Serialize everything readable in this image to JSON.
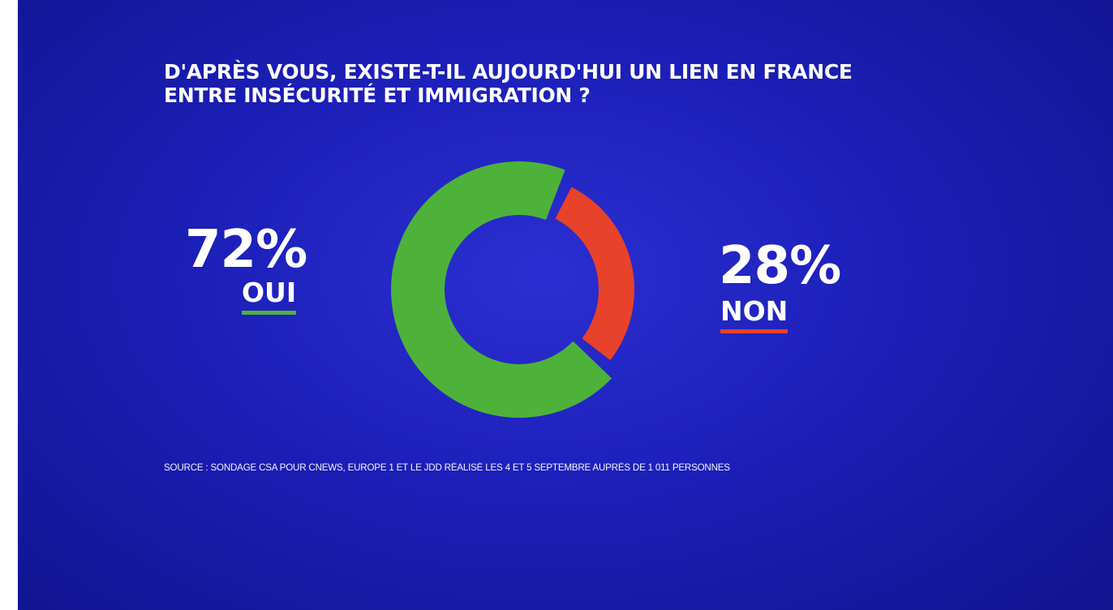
{
  "title_lines": [
    "D'APRÈS VOUS, EXISTE-T-IL AUJOURD'HUI UN LIEN EN FRANCE",
    "ENTRE INSÉCURITÉ ET IMMIGRATION ?"
  ],
  "source": "SOURCE : SONDAGE CSA POUR CNEWS, EUROPE 1 ET LE JDD RÉALISÉ LES 4 ET 5 SEPTEMBRE AUPRÈS DE 1 011 PERSONNES",
  "colors": {
    "background": "#1c1fb8",
    "oui": "#4eb23a",
    "non": "#e8422a",
    "text": "#ffffff"
  },
  "chart_data": {
    "type": "pie",
    "style": "donut",
    "title": "D'APRÈS VOUS, EXISTE-T-IL AUJOURD'HUI UN LIEN EN FRANCE ENTRE INSÉCURITÉ ET IMMIGRATION ?",
    "slices": [
      {
        "label": "OUI",
        "value": 72,
        "display": "72%",
        "color": "#4eb23a"
      },
      {
        "label": "NON",
        "value": 28,
        "display": "28%",
        "color": "#e8422a"
      }
    ]
  }
}
